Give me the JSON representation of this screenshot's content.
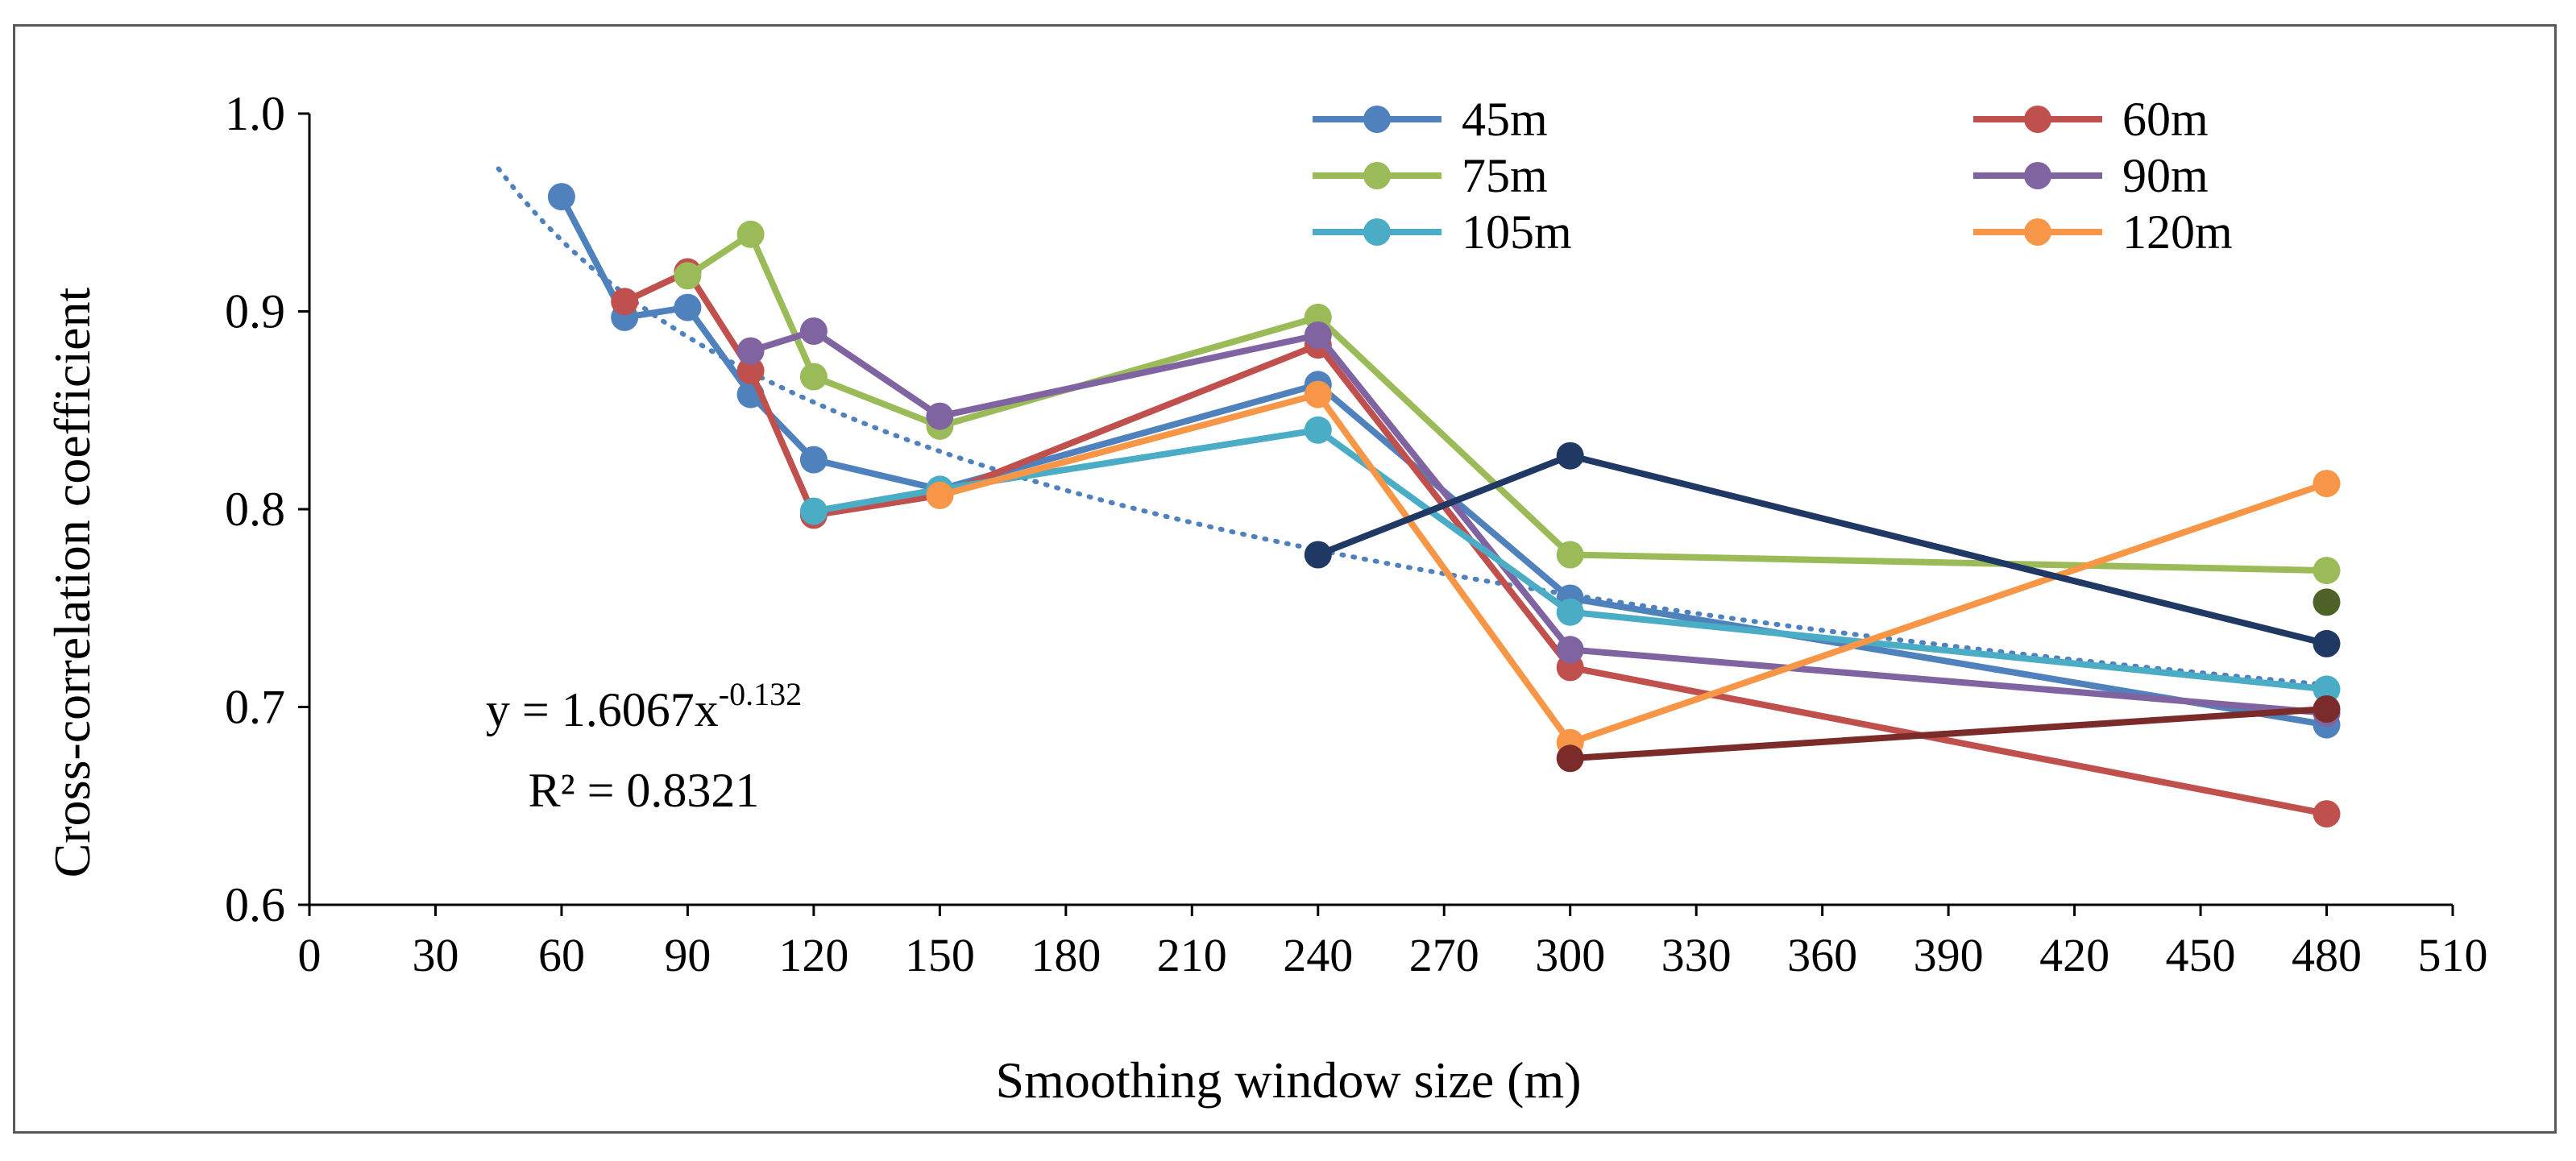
{
  "chart_data": {
    "type": "line",
    "title": "",
    "xlabel": "Smoothing window size (m)",
    "ylabel": "Cross-correlation coefficient",
    "xlim": [
      0,
      510
    ],
    "ylim": [
      0.6,
      1.0
    ],
    "x_ticks": [
      0,
      30,
      60,
      90,
      120,
      150,
      180,
      210,
      240,
      270,
      300,
      330,
      360,
      390,
      420,
      450,
      480,
      510
    ],
    "y_ticks": [
      0.6,
      0.7,
      0.8,
      0.9,
      1.0
    ],
    "y_tick_labels": [
      "0.6",
      "0.7",
      "0.8",
      "0.9",
      "1.0"
    ],
    "grid": false,
    "legend_position": "top-right",
    "series": [
      {
        "name": "45m",
        "color": "#4f81bd",
        "x": [
          60,
          75,
          90,
          105,
          120,
          150,
          240,
          300,
          480
        ],
        "y": [
          0.958,
          0.897,
          0.902,
          0.858,
          0.825,
          0.81,
          0.863,
          0.755,
          0.691
        ]
      },
      {
        "name": "60m",
        "color": "#c0504d",
        "x": [
          75,
          90,
          105,
          120,
          150,
          240,
          300,
          480
        ],
        "y": [
          0.905,
          0.92,
          0.87,
          0.797,
          0.807,
          0.883,
          0.72,
          0.646
        ]
      },
      {
        "name": "75m",
        "color": "#9bbb59",
        "x": [
          90,
          105,
          120,
          150,
          240,
          300,
          480
        ],
        "y": [
          0.918,
          0.939,
          0.867,
          0.842,
          0.897,
          0.777,
          0.769
        ]
      },
      {
        "name": "90m",
        "color": "#8064a2",
        "x": [
          105,
          120,
          150,
          240,
          300,
          480
        ],
        "y": [
          0.88,
          0.89,
          0.847,
          0.888,
          0.729,
          0.697
        ]
      },
      {
        "name": "105m",
        "color": "#4bacc6",
        "x": [
          120,
          150,
          240,
          300,
          480
        ],
        "y": [
          0.799,
          0.81,
          0.84,
          0.748,
          0.709
        ]
      },
      {
        "name": "120m",
        "color": "#f79646",
        "x": [
          150,
          240,
          300,
          480
        ],
        "y": [
          0.807,
          0.858,
          0.682,
          0.813
        ]
      },
      {
        "name": "",
        "color": "#1f3864",
        "x": [
          240,
          300,
          480
        ],
        "y": [
          0.777,
          0.827,
          0.732
        ]
      },
      {
        "name": "",
        "color": "#7b2c2a",
        "x": [
          300,
          480
        ],
        "y": [
          0.674,
          0.699
        ]
      },
      {
        "name": "",
        "color": "#4f6228",
        "x": [
          480
        ],
        "y": [
          0.753
        ]
      }
    ],
    "trendline": {
      "type": "power",
      "color": "#4f81bd",
      "x_range": [
        45,
        480
      ],
      "coef": 1.6067,
      "exponent": -0.132,
      "equation_prefix": "y = 1.6067x",
      "equation_exponent": "-0.132",
      "r_squared_label": "R² = 0.8321"
    }
  }
}
